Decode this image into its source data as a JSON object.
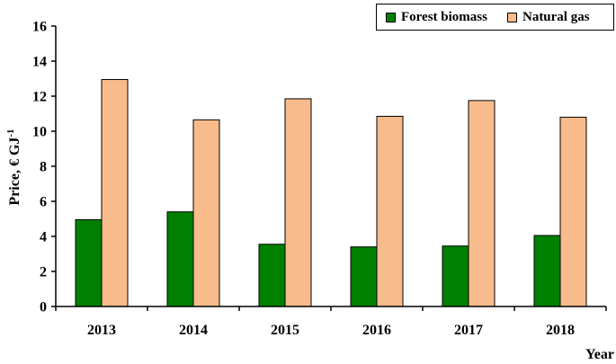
{
  "chart_data": {
    "type": "bar",
    "categories": [
      "2013",
      "2014",
      "2015",
      "2016",
      "2017",
      "2018"
    ],
    "series": [
      {
        "name": "Forest biomass",
        "color": "#008000",
        "values": [
          4.95,
          5.4,
          3.55,
          3.4,
          3.45,
          4.05
        ]
      },
      {
        "name": "Natural gas",
        "color": "#f8bc8c",
        "values": [
          12.95,
          10.65,
          11.85,
          10.85,
          11.75,
          10.8
        ]
      }
    ],
    "title": "",
    "xlabel": "Year",
    "ylabel_main": "Price, € GJ",
    "ylabel_sup": "-1",
    "ylim": [
      0,
      16
    ],
    "yticks": [
      "0",
      "2",
      "4",
      "6",
      "8",
      "10",
      "12",
      "14",
      "16"
    ],
    "grid": false,
    "legend_position": "top-right"
  }
}
